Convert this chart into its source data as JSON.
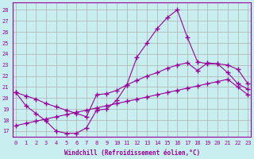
{
  "xlabel": "Windchill (Refroidissement éolien,°C)",
  "background_color": "#c8eef0",
  "grid_color": "#b0b0b0",
  "line_color": "#990099",
  "x_ticks": [
    0,
    1,
    2,
    3,
    4,
    5,
    6,
    7,
    8,
    9,
    10,
    11,
    12,
    13,
    14,
    15,
    16,
    17,
    18,
    19,
    20,
    21,
    22,
    23
  ],
  "y_ticks": [
    17,
    18,
    19,
    20,
    21,
    22,
    23,
    24,
    25,
    26,
    27,
    28
  ],
  "ylim": [
    16.5,
    28.7
  ],
  "xlim": [
    -0.3,
    23.3
  ],
  "line1_x": [
    0,
    1,
    2,
    3,
    4,
    5,
    6,
    7,
    8,
    9,
    10,
    11,
    12,
    13,
    14,
    15,
    16,
    17,
    18,
    19,
    20,
    21,
    22,
    23
  ],
  "line1_y": [
    20.5,
    19.3,
    18.6,
    17.9,
    17.0,
    16.8,
    16.8,
    17.3,
    18.9,
    19.0,
    19.8,
    21.2,
    23.7,
    25.0,
    26.3,
    27.3,
    28.0,
    25.5,
    23.3,
    23.1,
    23.1,
    23.0,
    22.6,
    21.3
  ],
  "line2_x": [
    0,
    1,
    2,
    3,
    4,
    5,
    6,
    7,
    8,
    9,
    10,
    11,
    12,
    13,
    14,
    15,
    16,
    17,
    18,
    19,
    20,
    21,
    22,
    23
  ],
  "line2_y": [
    20.5,
    20.2,
    19.9,
    19.5,
    19.2,
    18.9,
    18.6,
    18.3,
    20.3,
    20.4,
    20.7,
    21.2,
    21.6,
    22.0,
    22.3,
    22.7,
    23.0,
    23.2,
    22.5,
    23.2,
    23.1,
    22.3,
    21.3,
    20.8
  ],
  "line3_x": [
    0,
    1,
    2,
    3,
    4,
    5,
    6,
    7,
    8,
    9,
    10,
    11,
    12,
    13,
    14,
    15,
    16,
    17,
    18,
    19,
    20,
    21,
    22,
    23
  ],
  "line3_y": [
    17.5,
    17.7,
    17.9,
    18.1,
    18.3,
    18.5,
    18.7,
    18.9,
    19.1,
    19.3,
    19.5,
    19.7,
    19.9,
    20.1,
    20.3,
    20.5,
    20.7,
    20.9,
    21.1,
    21.3,
    21.5,
    21.7,
    21.0,
    20.3
  ]
}
